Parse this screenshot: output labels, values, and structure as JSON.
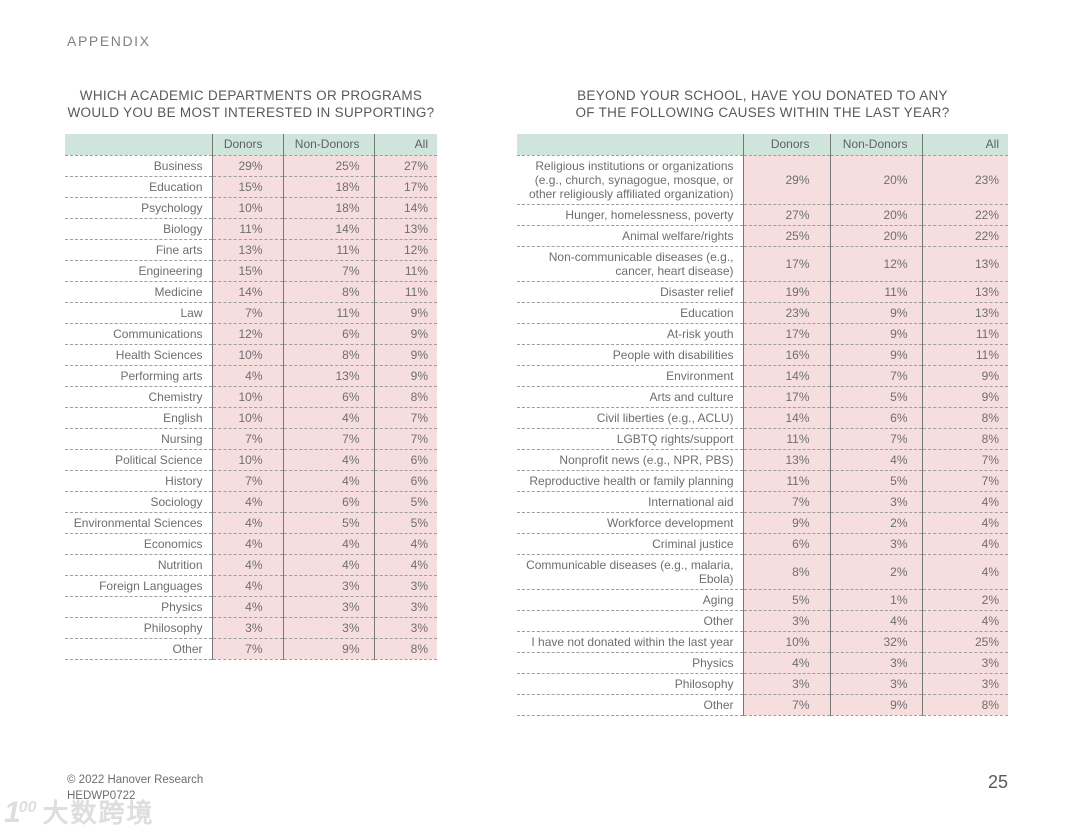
{
  "page": {
    "appendix_label": "APPENDIX",
    "page_number": "25",
    "footer": {
      "copyright": "© 2022 Hanover Research",
      "code": "HEDWP0722"
    },
    "watermark": {
      "logo_number": "1",
      "logo_sup": "00",
      "text": "大数跨境"
    }
  },
  "colors": {
    "header_green": "#cfe4da",
    "cell_pink": "#f7dede",
    "text_gray": "#6d6e71",
    "title_gray": "#58595b",
    "separator_gray": "#77787b",
    "dashed_line_gray": "#9e9e9e"
  },
  "left_table": {
    "title_lines": [
      "WHICH ACADEMIC DEPARTMENTS OR PROGRAMS",
      "WOULD YOU BE MOST INTERESTED IN SUPPORTING?"
    ],
    "headers": [
      "",
      "Donors",
      "Non-Donors",
      "All"
    ],
    "rows": [
      {
        "label": "Business",
        "donors": "29%",
        "non_donors": "25%",
        "all": "27%"
      },
      {
        "label": "Education",
        "donors": "15%",
        "non_donors": "18%",
        "all": "17%"
      },
      {
        "label": "Psychology",
        "donors": "10%",
        "non_donors": "18%",
        "all": "14%"
      },
      {
        "label": "Biology",
        "donors": "11%",
        "non_donors": "14%",
        "all": "13%"
      },
      {
        "label": "Fine arts",
        "donors": "13%",
        "non_donors": "11%",
        "all": "12%"
      },
      {
        "label": "Engineering",
        "donors": "15%",
        "non_donors": "7%",
        "all": "11%"
      },
      {
        "label": "Medicine",
        "donors": "14%",
        "non_donors": "8%",
        "all": "11%"
      },
      {
        "label": "Law",
        "donors": "7%",
        "non_donors": "11%",
        "all": "9%"
      },
      {
        "label": "Communications",
        "donors": "12%",
        "non_donors": "6%",
        "all": "9%"
      },
      {
        "label": "Health Sciences",
        "donors": "10%",
        "non_donors": "8%",
        "all": "9%"
      },
      {
        "label": "Performing arts",
        "donors": "4%",
        "non_donors": "13%",
        "all": "9%"
      },
      {
        "label": "Chemistry",
        "donors": "10%",
        "non_donors": "6%",
        "all": "8%"
      },
      {
        "label": "English",
        "donors": "10%",
        "non_donors": "4%",
        "all": "7%"
      },
      {
        "label": "Nursing",
        "donors": "7%",
        "non_donors": "7%",
        "all": "7%"
      },
      {
        "label": "Political Science",
        "donors": "10%",
        "non_donors": "4%",
        "all": "6%"
      },
      {
        "label": "History",
        "donors": "7%",
        "non_donors": "4%",
        "all": "6%"
      },
      {
        "label": "Sociology",
        "donors": "4%",
        "non_donors": "6%",
        "all": "5%"
      },
      {
        "label": "Environmental Sciences",
        "donors": "4%",
        "non_donors": "5%",
        "all": "5%"
      },
      {
        "label": "Economics",
        "donors": "4%",
        "non_donors": "4%",
        "all": "4%"
      },
      {
        "label": "Nutrition",
        "donors": "4%",
        "non_donors": "4%",
        "all": "4%"
      },
      {
        "label": "Foreign Languages",
        "donors": "4%",
        "non_donors": "3%",
        "all": "3%"
      },
      {
        "label": "Physics",
        "donors": "4%",
        "non_donors": "3%",
        "all": "3%"
      },
      {
        "label": "Philosophy",
        "donors": "3%",
        "non_donors": "3%",
        "all": "3%"
      },
      {
        "label": "Other",
        "donors": "7%",
        "non_donors": "9%",
        "all": "8%"
      }
    ]
  },
  "right_table": {
    "title_lines": [
      "BEYOND YOUR SCHOOL, HAVE YOU DONATED TO ANY",
      "OF THE FOLLOWING CAUSES WITHIN THE LAST YEAR?"
    ],
    "headers": [
      "",
      "Donors",
      "Non-Donors",
      "All"
    ],
    "rows": [
      {
        "label": "Religious institutions or organizations (e.g., church, synagogue, mosque, or other religiously affiliated organization)",
        "donors": "29%",
        "non_donors": "20%",
        "all": "23%"
      },
      {
        "label": "Hunger, homelessness, poverty",
        "donors": "27%",
        "non_donors": "20%",
        "all": "22%"
      },
      {
        "label": "Animal welfare/rights",
        "donors": "25%",
        "non_donors": "20%",
        "all": "22%"
      },
      {
        "label": "Non-communicable diseases (e.g., cancer, heart disease)",
        "donors": "17%",
        "non_donors": "12%",
        "all": "13%"
      },
      {
        "label": "Disaster relief",
        "donors": "19%",
        "non_donors": "11%",
        "all": "13%"
      },
      {
        "label": "Education",
        "donors": "23%",
        "non_donors": "9%",
        "all": "13%"
      },
      {
        "label": "At-risk youth",
        "donors": "17%",
        "non_donors": "9%",
        "all": "11%"
      },
      {
        "label": "People with disabilities",
        "donors": "16%",
        "non_donors": "9%",
        "all": "11%"
      },
      {
        "label": "Environment",
        "donors": "14%",
        "non_donors": "7%",
        "all": "9%"
      },
      {
        "label": "Arts and culture",
        "donors": "17%",
        "non_donors": "5%",
        "all": "9%"
      },
      {
        "label": "Civil liberties (e.g., ACLU)",
        "donors": "14%",
        "non_donors": "6%",
        "all": "8%"
      },
      {
        "label": "LGBTQ rights/support",
        "donors": "11%",
        "non_donors": "7%",
        "all": "8%"
      },
      {
        "label": "Nonprofit news (e.g., NPR, PBS)",
        "donors": "13%",
        "non_donors": "4%",
        "all": "7%"
      },
      {
        "label": "Reproductive health or family planning",
        "donors": "11%",
        "non_donors": "5%",
        "all": "7%"
      },
      {
        "label": "International aid",
        "donors": "7%",
        "non_donors": "3%",
        "all": "4%"
      },
      {
        "label": "Workforce development",
        "donors": "9%",
        "non_donors": "2%",
        "all": "4%"
      },
      {
        "label": "Criminal justice",
        "donors": "6%",
        "non_donors": "3%",
        "all": "4%"
      },
      {
        "label": "Communicable diseases (e.g., malaria, Ebola)",
        "donors": "8%",
        "non_donors": "2%",
        "all": "4%"
      },
      {
        "label": "Aging",
        "donors": "5%",
        "non_donors": "1%",
        "all": "2%"
      },
      {
        "label": "Other",
        "donors": "3%",
        "non_donors": "4%",
        "all": "4%"
      },
      {
        "label": "I have not donated within the last year",
        "donors": "10%",
        "non_donors": "32%",
        "all": "25%"
      },
      {
        "label": "Physics",
        "donors": "4%",
        "non_donors": "3%",
        "all": "3%"
      },
      {
        "label": "Philosophy",
        "donors": "3%",
        "non_donors": "3%",
        "all": "3%"
      },
      {
        "label": "Other",
        "donors": "7%",
        "non_donors": "9%",
        "all": "8%"
      }
    ]
  }
}
